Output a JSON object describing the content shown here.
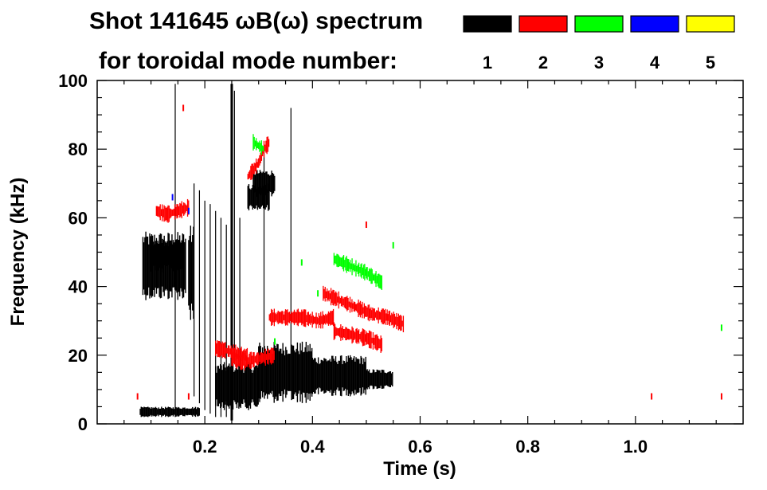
{
  "chart_data": {
    "type": "scatter",
    "title_line1": "Shot 141645 ωB(ω) spectrum",
    "title_line2": "for toroidal mode number:",
    "xlabel": "Time (s)",
    "ylabel": "Frequency (kHz)",
    "xlim": [
      0.0,
      1.2
    ],
    "ylim": [
      0,
      100
    ],
    "x_ticks": [
      {
        "value": 0.2,
        "label": "0.2"
      },
      {
        "value": 0.4,
        "label": "0.4"
      },
      {
        "value": 0.6,
        "label": "0.6"
      },
      {
        "value": 0.8,
        "label": "0.8"
      },
      {
        "value": 1.0,
        "label": "1.0"
      }
    ],
    "y_ticks": [
      {
        "value": 0,
        "label": "0"
      },
      {
        "value": 20,
        "label": "20"
      },
      {
        "value": 40,
        "label": "40"
      },
      {
        "value": 60,
        "label": "60"
      },
      {
        "value": 80,
        "label": "80"
      },
      {
        "value": 100,
        "label": "100"
      }
    ],
    "legend": [
      {
        "label": "1",
        "color": "#000000"
      },
      {
        "label": "2",
        "color": "#ff0000"
      },
      {
        "label": "3",
        "color": "#00ff00"
      },
      {
        "label": "4",
        "color": "#0000ff"
      },
      {
        "label": "5",
        "color": "#ffff00"
      }
    ],
    "series": [
      {
        "name": "n=1",
        "color": "#000000",
        "blobs": [
          {
            "t": [
              0.085,
              0.165
            ],
            "f": [
              36,
              56
            ]
          },
          {
            "t": [
              0.1,
              0.16
            ],
            "f": [
              44,
              54
            ]
          },
          {
            "t": [
              0.17,
              0.18
            ],
            "f": [
              30,
              58
            ]
          },
          {
            "t": [
              0.22,
              0.3
            ],
            "f": [
              4,
              18
            ]
          },
          {
            "t": [
              0.3,
              0.4
            ],
            "f": [
              6,
              24
            ]
          },
          {
            "t": [
              0.4,
              0.5
            ],
            "f": [
              8,
              20
            ]
          },
          {
            "t": [
              0.5,
              0.55
            ],
            "f": [
              10,
              16
            ]
          },
          {
            "t": [
              0.28,
              0.32
            ],
            "f": [
              62,
              70
            ]
          },
          {
            "t": [
              0.29,
              0.33
            ],
            "f": [
              66,
              74
            ]
          },
          {
            "t": [
              0.08,
              0.19
            ],
            "f": [
              2,
              5
            ]
          }
        ],
        "lines": [
          {
            "t": 0.145,
            "f": [
              2,
              99
            ]
          },
          {
            "t": 0.25,
            "f": [
              1,
              99
            ]
          },
          {
            "t": 0.255,
            "f": [
              20,
              97
            ]
          },
          {
            "t": 0.18,
            "f": [
              8,
              70
            ]
          },
          {
            "t": 0.19,
            "f": [
              6,
              68
            ]
          },
          {
            "t": 0.2,
            "f": [
              4,
              65
            ]
          },
          {
            "t": 0.21,
            "f": [
              3,
              64
            ]
          },
          {
            "t": 0.22,
            "f": [
              2,
              62
            ]
          },
          {
            "t": 0.23,
            "f": [
              2,
              60
            ]
          },
          {
            "t": 0.24,
            "f": [
              2,
              58
            ]
          },
          {
            "t": 0.265,
            "f": [
              5,
              60
            ]
          },
          {
            "t": 0.36,
            "f": [
              18,
              92
            ]
          },
          {
            "t": 0.31,
            "f": [
              10,
              80
            ]
          }
        ]
      },
      {
        "name": "n=2",
        "color": "#ff0000",
        "curves": [
          {
            "t": [
              0.28,
              0.29,
              0.3,
              0.31,
              0.32
            ],
            "f": [
              72,
              74,
              76,
              80,
              82
            ]
          },
          {
            "t": [
              0.32,
              0.35,
              0.38,
              0.41,
              0.44
            ],
            "f": [
              31,
              31,
              31,
              30,
              31
            ]
          },
          {
            "t": [
              0.42,
              0.45,
              0.48,
              0.51,
              0.54,
              0.57
            ],
            "f": [
              38,
              36,
              34,
              32,
              31,
              29
            ]
          },
          {
            "t": [
              0.44,
              0.47,
              0.5,
              0.53
            ],
            "f": [
              27,
              26,
              25,
              23
            ]
          },
          {
            "t": [
              0.25,
              0.27,
              0.3,
              0.33
            ],
            "f": [
              19,
              18,
              19,
              20
            ]
          },
          {
            "t": [
              0.11,
              0.13,
              0.15,
              0.17
            ],
            "f": [
              62,
              61,
              62,
              63
            ]
          },
          {
            "t": [
              0.22,
              0.25,
              0.28
            ],
            "f": [
              22,
              21,
              20
            ]
          }
        ],
        "dots": [
          {
            "t": 0.17,
            "f": 8
          },
          {
            "t": 0.075,
            "f": 8
          },
          {
            "t": 1.03,
            "f": 8
          },
          {
            "t": 1.16,
            "f": 8
          },
          {
            "t": 0.5,
            "f": 58
          },
          {
            "t": 0.16,
            "f": 92
          }
        ]
      },
      {
        "name": "n=3",
        "color": "#00ff00",
        "curves": [
          {
            "t": [
              0.44,
              0.47,
              0.5,
              0.53
            ],
            "f": [
              48,
              46,
              44,
              41
            ]
          },
          {
            "t": [
              0.29,
              0.3,
              0.31
            ],
            "f": [
              82,
              81,
              80
            ]
          }
        ],
        "dots": [
          {
            "t": 0.41,
            "f": 38
          },
          {
            "t": 0.38,
            "f": 47
          },
          {
            "t": 1.16,
            "f": 28
          },
          {
            "t": 0.33,
            "f": 24
          },
          {
            "t": 0.55,
            "f": 52
          }
        ]
      },
      {
        "name": "n=4",
        "color": "#0000ff",
        "dots": [
          {
            "t": 0.14,
            "f": 66
          },
          {
            "t": 0.17,
            "f": 62
          }
        ]
      }
    ]
  }
}
